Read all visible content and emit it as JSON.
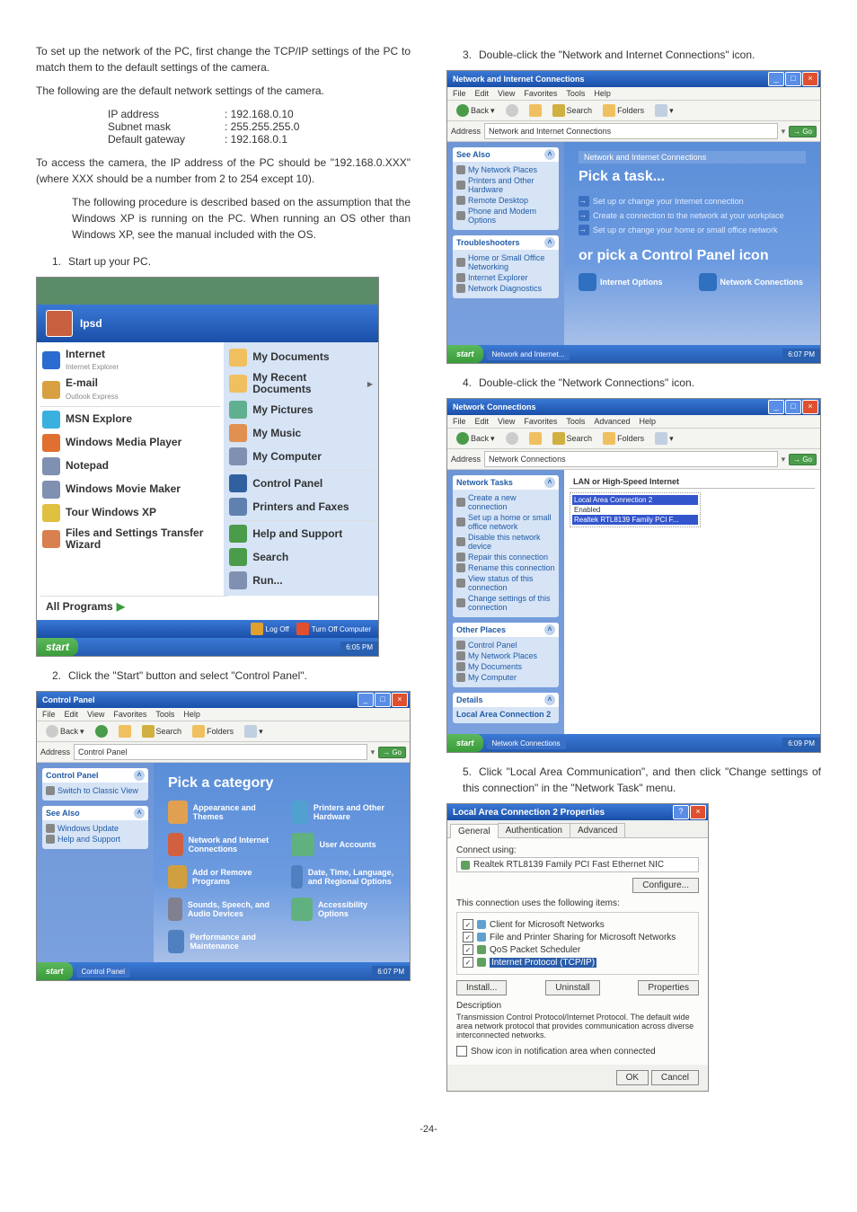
{
  "text": {
    "intro1": "To set up the network of the PC, first change the TCP/IP settings of the PC to match them to the default settings of the camera.",
    "intro2": "The following are the default network settings of the camera.",
    "ip_label": "IP address",
    "ip_value": ": 192.168.0.10",
    "mask_label": "Subnet mask",
    "mask_value": ": 255.255.255.0",
    "gw_label": "Default gateway",
    "gw_value": ": 192.168.0.1",
    "access": "To access the camera, the IP address of the PC should be \"192.168.0.XXX\" (where XXX should be a number from 2 to 254 except 10).",
    "note": "The following procedure is described based on the assumption that the Windows XP is running on the PC. When running an OS other than Windows XP, see the manual included with the OS.",
    "step1": "Start up your PC.",
    "step2": "Click the \"Start\" button and select \"Control Panel\".",
    "step3": "Double-click the \"Network and Internet Connections\" icon.",
    "step4": "Double-click the \"Network Connections\" icon.",
    "step5": "Click \"Local Area Communication\", and then click \"Change settings of this connection\" in the \"Network Task\" menu.",
    "page": "-24-"
  },
  "colors": {
    "xp_blue_top": "#3a78d6",
    "xp_green": "#5cb85c",
    "cp_hero_bg": "#5a8ed8"
  },
  "startmenu": {
    "user": "Ipsd",
    "left": [
      {
        "title": "Internet",
        "sub": "Internet Explorer",
        "icon": "#2a6cd0"
      },
      {
        "title": "E-mail",
        "sub": "Outlook Express",
        "icon": "#d8a040"
      },
      {
        "title": "MSN Explore",
        "icon": "#3ab0e0"
      },
      {
        "title": "Windows Media Player",
        "icon": "#e07030"
      },
      {
        "title": "Notepad",
        "icon": "#8090b0"
      },
      {
        "title": "Windows Movie Maker",
        "icon": "#8090b0"
      },
      {
        "title": "Tour Windows XP",
        "icon": "#e0c040"
      },
      {
        "title": "Files and Settings Transfer Wizard",
        "icon": "#d88050"
      }
    ],
    "right": [
      {
        "title": "My Documents",
        "icon": "#f0c060"
      },
      {
        "title": "My Recent Documents",
        "icon": "#f0c060",
        "arrow": true
      },
      {
        "title": "My Pictures",
        "icon": "#60b090"
      },
      {
        "title": "My Music",
        "icon": "#e09050"
      },
      {
        "title": "My Computer",
        "icon": "#8090b0"
      },
      {
        "title": "Control Panel",
        "icon": "#3060a0",
        "sep": true
      },
      {
        "title": "Printers and Faxes",
        "icon": "#6080b0"
      },
      {
        "title": "Help and Support",
        "icon": "#4a9c4a",
        "sep": true
      },
      {
        "title": "Search",
        "icon": "#4a9c4a"
      },
      {
        "title": "Run...",
        "icon": "#8090b0"
      }
    ],
    "all_programs": "All Programs",
    "logoff": "Log Off",
    "turnoff": "Turn Off Computer",
    "time": "6:05 PM"
  },
  "explorer": {
    "menus": [
      "File",
      "Edit",
      "View",
      "Favorites",
      "Tools",
      "Help"
    ],
    "menus_nc": [
      "File",
      "Edit",
      "View",
      "Favorites",
      "Tools",
      "Advanced",
      "Help"
    ],
    "back": "Back",
    "search": "Search",
    "folders": "Folders",
    "addr_label": "Address",
    "go": "Go"
  },
  "cp": {
    "title": "Control Panel",
    "start": "start",
    "task_item": "Control Panel",
    "time": "6:07 PM",
    "addr": "Control Panel",
    "heading": "Pick a category",
    "side1_title": "Control Panel",
    "side1_items": [
      "Switch to Classic View"
    ],
    "side2_title": "See Also",
    "side2_items": [
      "Windows Update",
      "Help and Support"
    ],
    "cats": [
      {
        "label": "Appearance and Themes",
        "color": "#e0a050"
      },
      {
        "label": "Printers and Other Hardware",
        "color": "#50a0d0"
      },
      {
        "label": "Network and Internet Connections",
        "color": "#d06040"
      },
      {
        "label": "User Accounts",
        "color": "#60b080"
      },
      {
        "label": "Add or Remove Programs",
        "color": "#d0a040"
      },
      {
        "label": "Date, Time, Language, and Regional Options",
        "color": "#5080c0"
      },
      {
        "label": "Sounds, Speech, and Audio Devices",
        "color": "#808090"
      },
      {
        "label": "Accessibility Options",
        "color": "#60b080"
      },
      {
        "label": "Performance and Maintenance",
        "color": "#5080c0"
      }
    ]
  },
  "nic": {
    "title": "Network and Internet Connections",
    "addr": "Network and Internet Connections",
    "task_item": "Network and Internet...",
    "time": "6:07 PM",
    "banner": "Network and Internet Connections",
    "pick_task": "Pick a task...",
    "tasks": [
      "Set up or change your Internet connection",
      "Create a connection to the network at your workplace",
      "Set up or change your home or small office network"
    ],
    "or_pick": "or pick a Control Panel icon",
    "icons": [
      {
        "label": "Internet Options",
        "color": "#3070c0"
      },
      {
        "label": "Network Connections",
        "color": "#3070c0"
      }
    ],
    "side1_title": "See Also",
    "side1_items": [
      "My Network Places",
      "Printers and Other Hardware",
      "Remote Desktop",
      "Phone and Modem Options"
    ],
    "side2_title": "Troubleshooters",
    "side2_items": [
      "Home or Small Office Networking",
      "Internet Explorer",
      "Network Diagnostics"
    ]
  },
  "nc": {
    "title": "Network Connections",
    "addr": "Network Connections",
    "task_item": "Network Connections",
    "time": "6:09 PM",
    "group": "LAN or High-Speed Internet",
    "conn_name": "Local Area Connection 2",
    "conn_status": "Enabled",
    "conn_device": "Realtek RTL8139 Family PCI F...",
    "side1_title": "Network Tasks",
    "side1_items": [
      "Create a new connection",
      "Set up a home or small office network",
      "Disable this network device",
      "Repair this connection",
      "Rename this connection",
      "View status of this connection",
      "Change settings of this connection"
    ],
    "side2_title": "Other Places",
    "side2_items": [
      "Control Panel",
      "My Network Places",
      "My Documents",
      "My Computer"
    ],
    "side3_title": "Details",
    "details_heading": "Local Area Connection 2"
  },
  "props": {
    "title": "Local Area Connection 2 Properties",
    "tabs": [
      "General",
      "Authentication",
      "Advanced"
    ],
    "connect_using": "Connect using:",
    "adapter": "Realtek RTL8139 Family PCI Fast Ethernet NIC",
    "configure": "Configure...",
    "items_label": "This connection uses the following items:",
    "items": [
      "Client for Microsoft Networks",
      "File and Printer Sharing for Microsoft Networks",
      "QoS Packet Scheduler",
      "Internet Protocol (TCP/IP)"
    ],
    "install": "Install...",
    "uninstall": "Uninstall",
    "properties": "Properties",
    "desc_title": "Description",
    "desc": "Transmission Control Protocol/Internet Protocol. The default wide area network protocol that provides communication across diverse interconnected networks.",
    "show_icon": "Show icon in notification area when connected",
    "ok": "OK",
    "cancel": "Cancel"
  }
}
